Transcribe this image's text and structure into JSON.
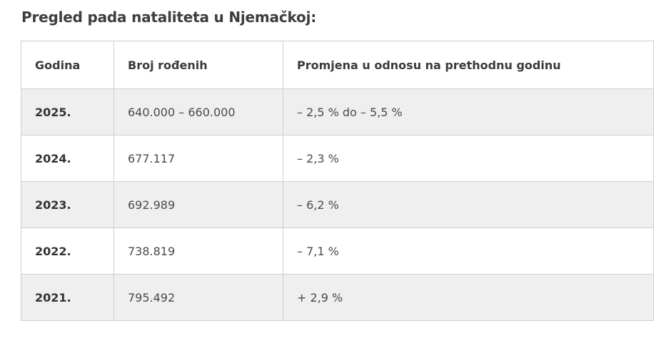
{
  "heading": "Pregled pada nataliteta u Njemačkoj:",
  "table": {
    "headers": [
      "Godina",
      "Broj rođenih",
      "Promjena u odnosu na prethodnu godinu"
    ],
    "rows": [
      [
        "2025.",
        "640.000 – 660.000",
        "– 2,5 % do – 5,5 %"
      ],
      [
        "2024.",
        "677.117",
        "– 2,3 %"
      ],
      [
        "2023.",
        "692.989",
        "– 6,2 %"
      ],
      [
        "2022.",
        "738.819",
        "– 7,1 %"
      ],
      [
        "2021.",
        "795.492",
        "+ 2,9 %"
      ]
    ]
  },
  "colors": {
    "stripe": "#efefef",
    "border": "#cfcfcf",
    "text": "#3a3a3a"
  }
}
